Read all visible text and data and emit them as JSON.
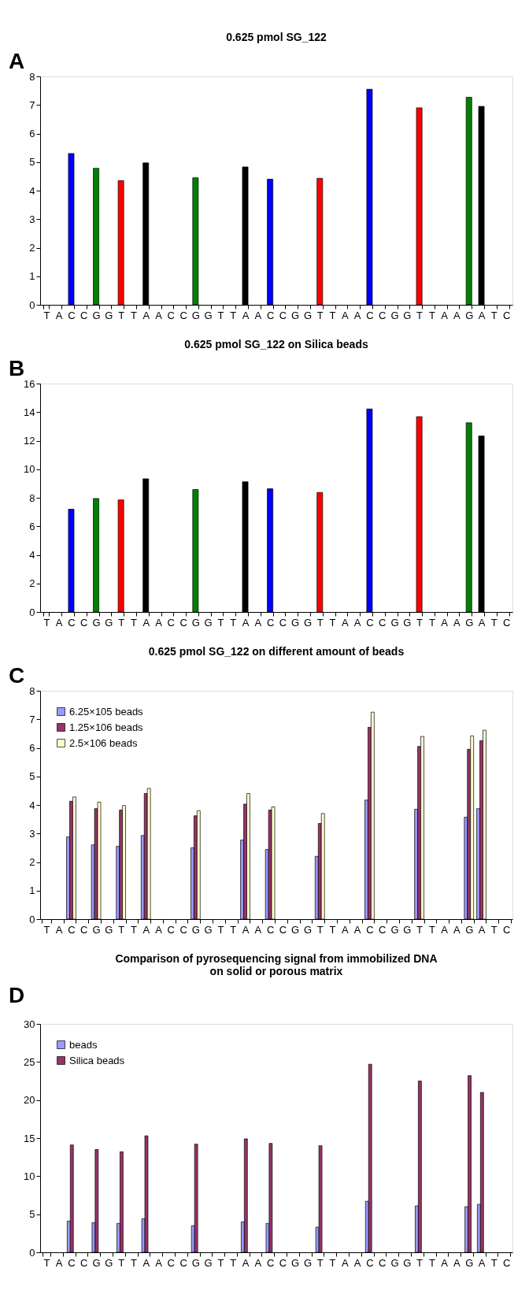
{
  "chart_data": [
    {
      "type": "bar",
      "title": "0.625 pmol SG_122",
      "annotations": [
        "A"
      ],
      "categories": [
        "T",
        "A",
        "C",
        "C",
        "G",
        "G",
        "T",
        "T",
        "A",
        "A",
        "C",
        "C",
        "G",
        "G",
        "T",
        "T",
        "A",
        "A",
        "C",
        "C",
        "G",
        "G",
        "T",
        "T",
        "A",
        "A",
        "C",
        "C",
        "G",
        "G",
        "T",
        "T",
        "A",
        "A",
        "G",
        "A",
        "T",
        "C"
      ],
      "values": [
        null,
        null,
        5.3,
        null,
        4.78,
        null,
        4.35,
        null,
        4.97,
        null,
        null,
        null,
        4.45,
        null,
        null,
        null,
        4.83,
        null,
        4.4,
        null,
        null,
        null,
        4.43,
        null,
        null,
        null,
        7.55,
        null,
        null,
        null,
        6.9,
        null,
        null,
        null,
        7.27,
        6.95,
        null,
        null
      ],
      "colors": [
        null,
        null,
        "#0000ff",
        null,
        "#008000",
        null,
        "#ff0000",
        null,
        "#000000",
        null,
        null,
        null,
        "#008000",
        null,
        null,
        null,
        "#000000",
        null,
        "#0000ff",
        null,
        null,
        null,
        "#ff0000",
        null,
        null,
        null,
        "#0000ff",
        null,
        null,
        null,
        "#ff0000",
        null,
        null,
        null,
        "#008000",
        "#000000",
        null,
        null
      ],
      "ylim": [
        0,
        8
      ],
      "yticks": [
        0,
        1,
        2,
        3,
        4,
        5,
        6,
        7,
        8
      ],
      "grid": false
    },
    {
      "type": "bar",
      "title": "0.625 pmol SG_122 on Silica beads",
      "annotations": [
        "B"
      ],
      "categories": [
        "T",
        "A",
        "C",
        "C",
        "G",
        "G",
        "T",
        "T",
        "A",
        "A",
        "C",
        "C",
        "G",
        "G",
        "T",
        "T",
        "A",
        "A",
        "C",
        "C",
        "G",
        "G",
        "T",
        "T",
        "A",
        "A",
        "C",
        "C",
        "G",
        "G",
        "T",
        "T",
        "A",
        "A",
        "G",
        "A",
        "T",
        "C"
      ],
      "values": [
        null,
        null,
        7.2,
        null,
        7.95,
        null,
        7.85,
        null,
        9.33,
        null,
        null,
        null,
        8.58,
        null,
        null,
        null,
        9.12,
        null,
        8.63,
        null,
        null,
        null,
        8.37,
        null,
        null,
        null,
        14.22,
        null,
        null,
        null,
        13.68,
        null,
        null,
        null,
        13.25,
        12.33,
        null,
        null
      ],
      "colors": [
        null,
        null,
        "#0000ff",
        null,
        "#008000",
        null,
        "#ff0000",
        null,
        "#000000",
        null,
        null,
        null,
        "#008000",
        null,
        null,
        null,
        "#000000",
        null,
        "#0000ff",
        null,
        null,
        null,
        "#ff0000",
        null,
        null,
        null,
        "#0000ff",
        null,
        null,
        null,
        "#ff0000",
        null,
        null,
        null,
        "#008000",
        "#000000",
        null,
        null
      ],
      "ylim": [
        0,
        16
      ],
      "yticks": [
        0,
        2,
        4,
        6,
        8,
        10,
        12,
        14,
        16
      ],
      "grid": false
    },
    {
      "type": "bar",
      "title": "0.625 pmol SG_122 on different amount of beads",
      "annotations": [
        "C"
      ],
      "categories": [
        "T",
        "A",
        "C",
        "C",
        "G",
        "G",
        "T",
        "T",
        "A",
        "A",
        "C",
        "C",
        "G",
        "G",
        "T",
        "T",
        "A",
        "A",
        "C",
        "C",
        "G",
        "G",
        "T",
        "T",
        "A",
        "A",
        "C",
        "C",
        "G",
        "G",
        "T",
        "T",
        "A",
        "A",
        "G",
        "A",
        "T",
        "C"
      ],
      "series": [
        {
          "name": "6.25×105 beads",
          "color": "#9999ff",
          "values": [
            null,
            null,
            2.88,
            null,
            2.6,
            null,
            2.55,
            null,
            2.93,
            null,
            null,
            null,
            2.5,
            null,
            null,
            null,
            2.77,
            null,
            2.44,
            null,
            null,
            null,
            2.2,
            null,
            null,
            null,
            4.17,
            null,
            null,
            null,
            3.85,
            null,
            null,
            null,
            3.57,
            3.87,
            null,
            null
          ]
        },
        {
          "name": "1.25×106 beads",
          "color": "#993366",
          "values": [
            null,
            null,
            4.13,
            null,
            3.87,
            null,
            3.82,
            null,
            4.4,
            null,
            null,
            null,
            3.62,
            null,
            null,
            null,
            4.03,
            null,
            3.82,
            null,
            null,
            null,
            3.35,
            null,
            null,
            null,
            6.72,
            null,
            null,
            null,
            6.05,
            null,
            null,
            null,
            5.95,
            6.25,
            null,
            null
          ]
        },
        {
          "name": "2.5×106 beads",
          "color": "#ffffcc",
          "values": [
            null,
            null,
            4.28,
            null,
            4.1,
            null,
            3.98,
            null,
            4.58,
            null,
            null,
            null,
            3.8,
            null,
            null,
            null,
            4.4,
            null,
            3.93,
            null,
            null,
            null,
            3.7,
            null,
            null,
            null,
            7.25,
            null,
            null,
            null,
            6.4,
            null,
            null,
            null,
            6.42,
            6.62,
            null,
            null
          ]
        }
      ],
      "ylim": [
        0,
        8
      ],
      "yticks": [
        0,
        1,
        2,
        3,
        4,
        5,
        6,
        7,
        8
      ],
      "grid": false,
      "legend": "top left"
    },
    {
      "type": "bar",
      "title": "Comparison of pyrosequencing signal from immobilized DNA\non solid or porous matrix",
      "annotations": [
        "D"
      ],
      "categories": [
        "T",
        "A",
        "C",
        "C",
        "G",
        "G",
        "T",
        "T",
        "A",
        "A",
        "C",
        "C",
        "G",
        "G",
        "T",
        "T",
        "A",
        "A",
        "C",
        "C",
        "G",
        "G",
        "T",
        "T",
        "A",
        "A",
        "C",
        "C",
        "G",
        "G",
        "T",
        "T",
        "A",
        "A",
        "G",
        "A",
        "T",
        "C"
      ],
      "series": [
        {
          "name": "beads",
          "color": "#9999ff",
          "values": [
            null,
            null,
            4.1,
            null,
            3.9,
            null,
            3.8,
            null,
            4.4,
            null,
            null,
            null,
            3.5,
            null,
            null,
            null,
            4.0,
            null,
            3.8,
            null,
            null,
            null,
            3.3,
            null,
            null,
            null,
            6.7,
            null,
            null,
            null,
            6.1,
            null,
            null,
            null,
            6.0,
            6.3,
            null,
            null
          ]
        },
        {
          "name": "Silica beads",
          "color": "#993366",
          "values": [
            null,
            null,
            14.1,
            null,
            13.5,
            null,
            13.2,
            null,
            15.3,
            null,
            null,
            null,
            14.2,
            null,
            null,
            null,
            14.9,
            null,
            14.3,
            null,
            null,
            null,
            14.0,
            null,
            null,
            null,
            24.7,
            null,
            null,
            null,
            22.5,
            null,
            null,
            null,
            23.2,
            21.0,
            null,
            null
          ]
        }
      ],
      "ylim": [
        0,
        30
      ],
      "yticks": [
        0,
        5,
        10,
        15,
        20,
        25,
        30
      ],
      "grid": false,
      "legend": "top left"
    }
  ]
}
